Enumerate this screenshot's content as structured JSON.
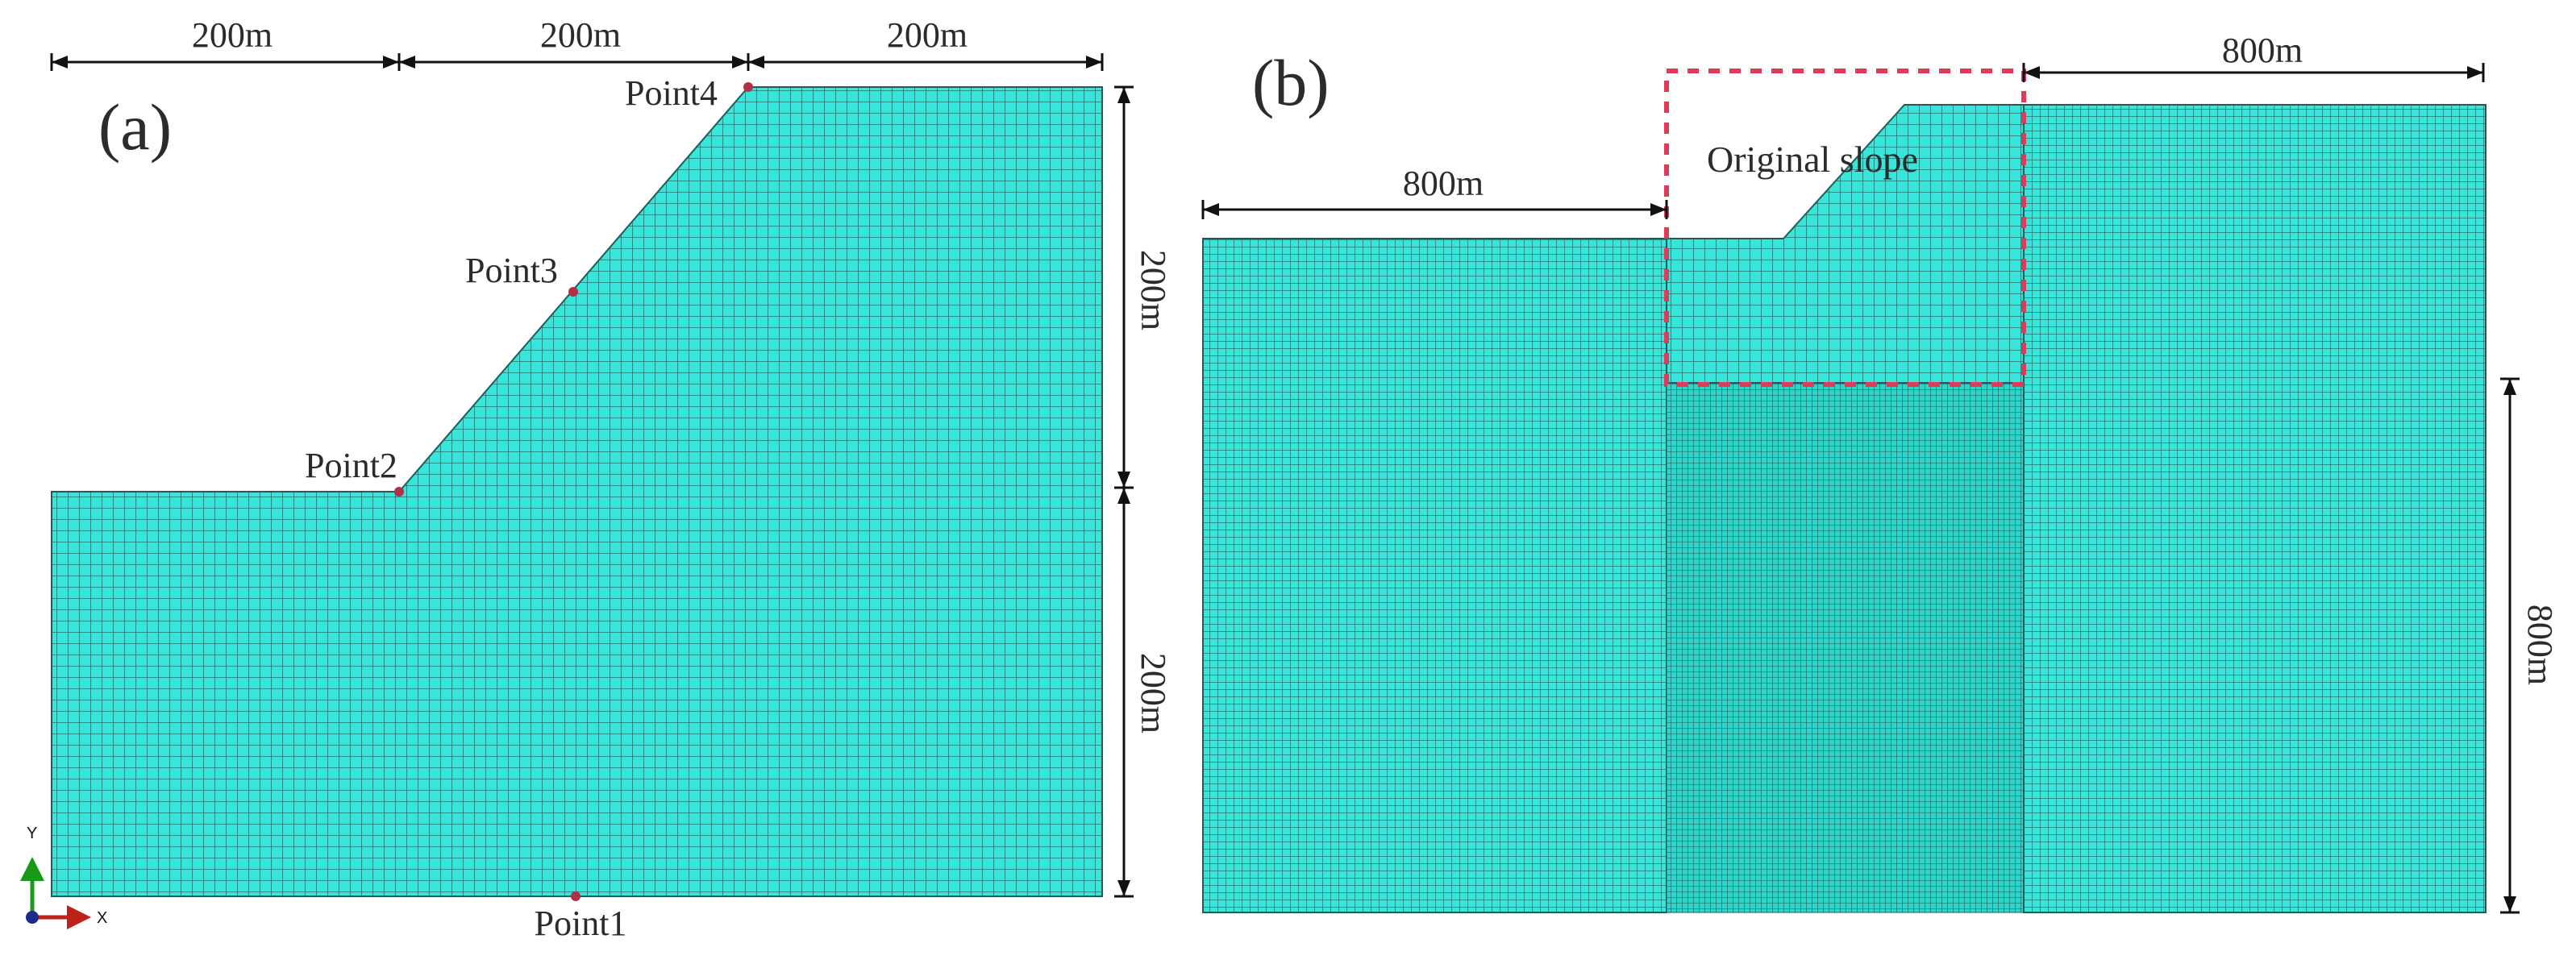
{
  "panels": {
    "a": {
      "label": "(a)",
      "dimensions": {
        "top": [
          "200m",
          "200m",
          "200m"
        ],
        "right_upper": "200m",
        "right_lower": "200m"
      },
      "points": {
        "p1": "Point1",
        "p2": "Point2",
        "p3": "Point3",
        "p4": "Point4"
      },
      "axes": {
        "x": "X",
        "y": "Y"
      }
    },
    "b": {
      "label": "(b)",
      "dimensions": {
        "left": "800m",
        "top_right": "800m",
        "right": "800m"
      },
      "region_label": "Original slope"
    }
  },
  "colors": {
    "mesh_fill": "#36e6db",
    "mesh_line": "#1f5d5a",
    "point_marker": "#b03048",
    "highlight_box": "#e03a5a"
  }
}
